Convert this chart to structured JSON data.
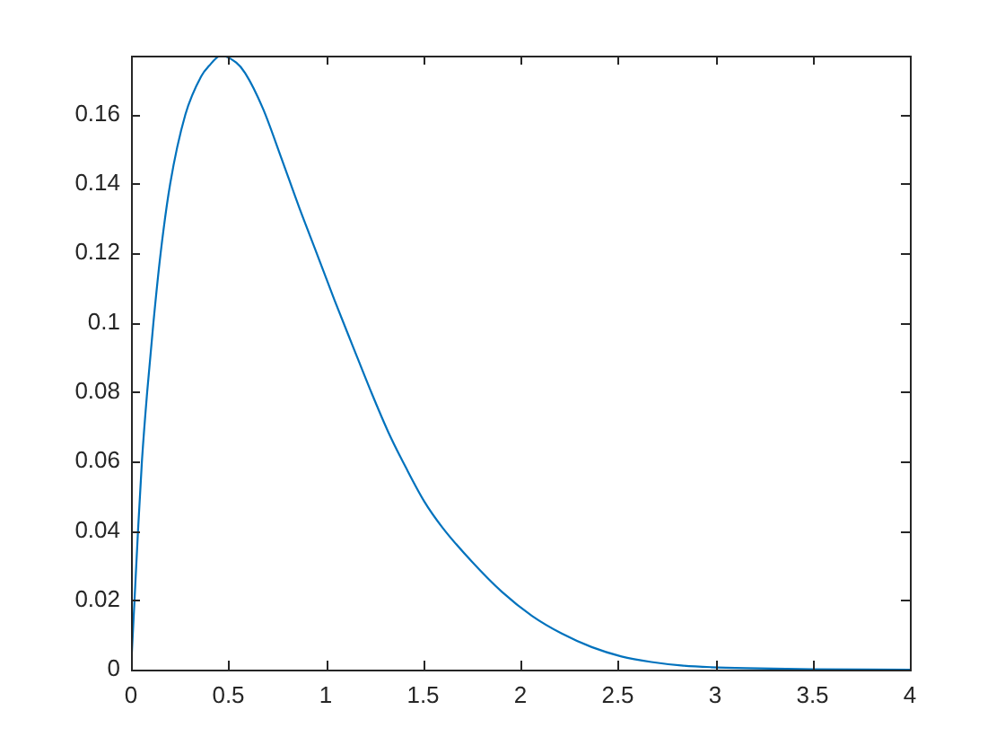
{
  "chart_data": {
    "type": "line",
    "color": "#0072bd",
    "marker": "none",
    "x": [
      0,
      0.018,
      0.036,
      0.056,
      0.083,
      0.115,
      0.152,
      0.201,
      0.279,
      0.36,
      0.4,
      0.462,
      0.54,
      0.586,
      0.678,
      0.77,
      0.862,
      0.954,
      1.046,
      1.138,
      1.23,
      1.322,
      1.414,
      1.506,
      1.599,
      1.751,
      1.905,
      2.059,
      2.212,
      2.366,
      2.519,
      2.672,
      2.826,
      2.98,
      3.16,
      3.5,
      4.0
    ],
    "values": [
      0,
      0.02,
      0.04,
      0.06,
      0.08,
      0.1,
      0.12,
      0.14,
      0.16,
      0.171,
      0.174,
      0.177,
      0.175,
      0.172,
      0.1617,
      0.1478,
      0.1335,
      0.12,
      0.1064,
      0.0934,
      0.0805,
      0.0684,
      0.058,
      0.0485,
      0.041,
      0.0311,
      0.0224,
      0.0155,
      0.0104,
      0.0065,
      0.0038,
      0.0022,
      0.0012,
      0.0007,
      0.0004,
      0.0001,
      0
    ],
    "xlim": [
      0,
      4
    ],
    "ylim": [
      0,
      0.177
    ],
    "xticks": [
      0,
      0.5,
      1,
      1.5,
      2,
      2.5,
      3,
      3.5,
      4
    ],
    "yticks": [
      0,
      0.02,
      0.04,
      0.06,
      0.08,
      0.1,
      0.12,
      0.14,
      0.16
    ]
  }
}
